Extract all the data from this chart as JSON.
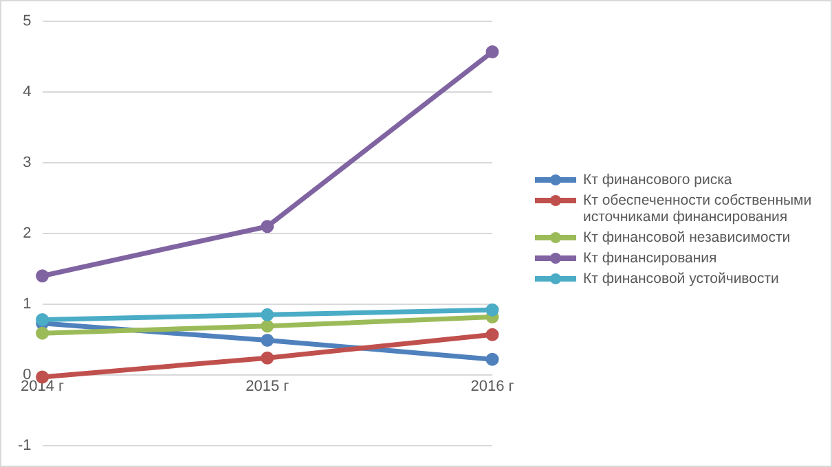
{
  "chart_data": {
    "type": "line",
    "categories": [
      "2014 г",
      "2015 г",
      "2016 г"
    ],
    "ylim": [
      -1,
      5
    ],
    "yticks": [
      -1,
      0,
      1,
      2,
      3,
      4,
      5
    ],
    "grid": "y",
    "legend": "right",
    "marker": "circle",
    "series": [
      {
        "name": "Кт финансового риска",
        "color": "#4f81bd",
        "values": [
          0.73,
          0.49,
          0.22
        ]
      },
      {
        "name": "Кт обеспеченности собственными источниками финансирования",
        "color": "#c0504d",
        "values": [
          -0.03,
          0.24,
          0.57
        ]
      },
      {
        "name": "Кт финансовой независимости",
        "color": "#9bbb59",
        "values": [
          0.59,
          0.69,
          0.82
        ]
      },
      {
        "name": "Кт финансирования",
        "color": "#8064a2",
        "values": [
          1.4,
          2.1,
          4.57
        ]
      },
      {
        "name": "Кт финансовой устойчивости",
        "color": "#4bacc6",
        "values": [
          0.78,
          0.85,
          0.92
        ]
      }
    ]
  }
}
